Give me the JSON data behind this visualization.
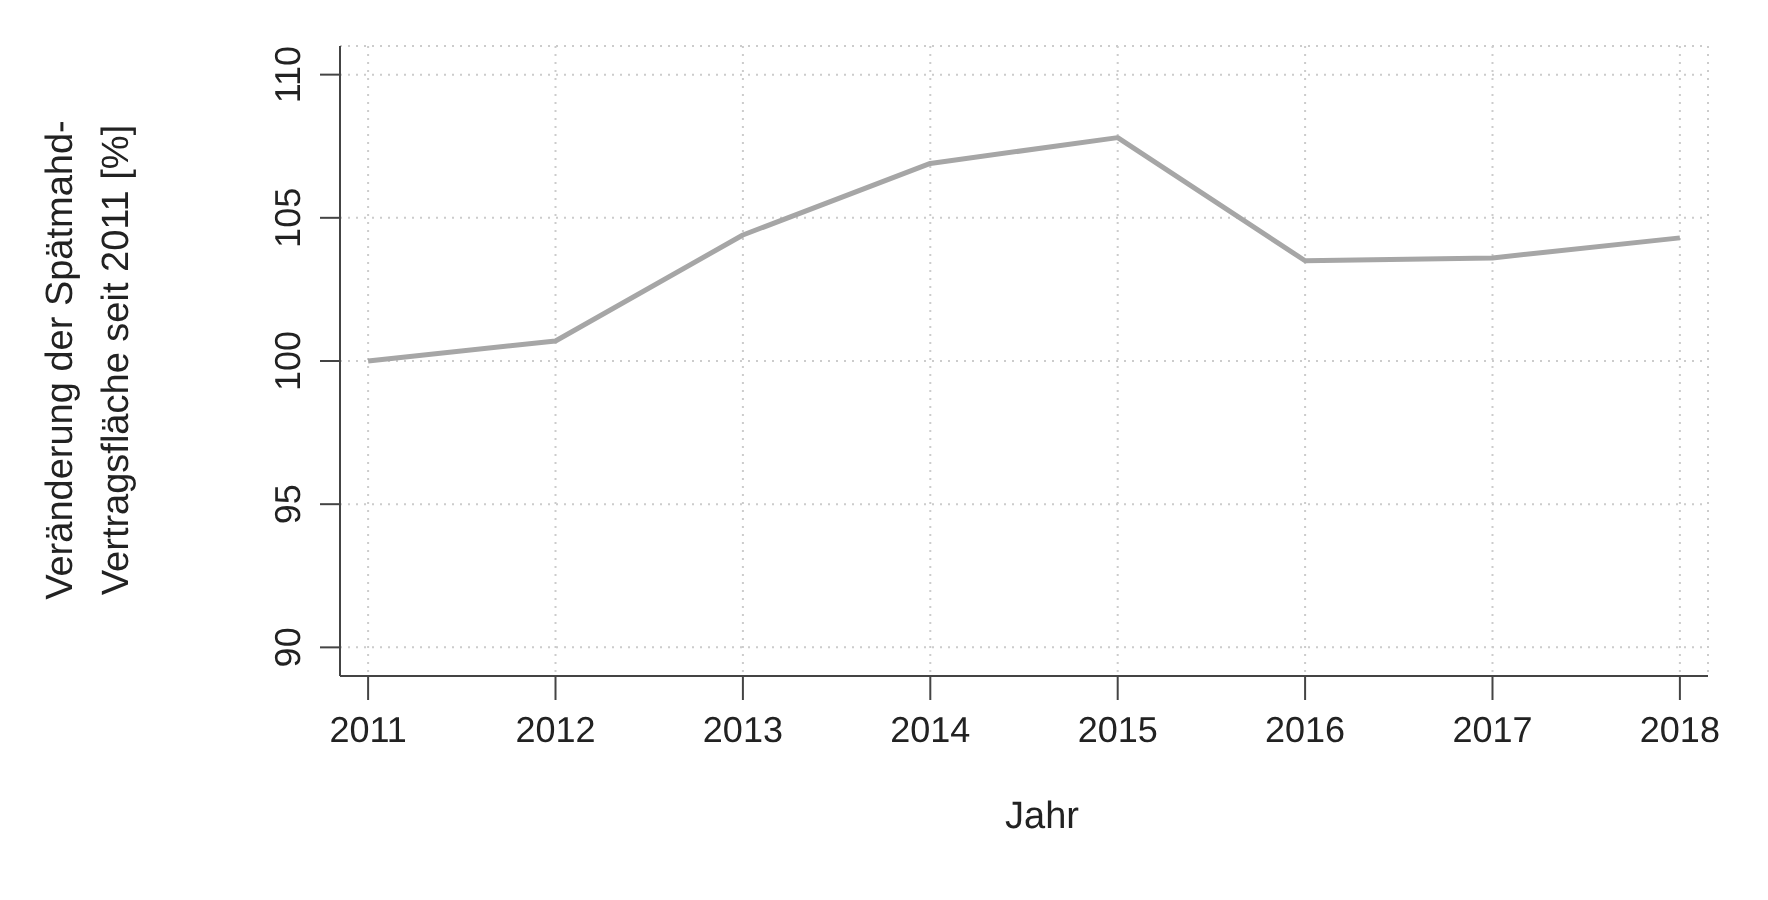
{
  "chart_data": {
    "type": "line",
    "xlabel": "Jahr",
    "ylabel": "Veränderung der Spätmahd-\nVertragsfläche seit 2011 [%]",
    "x": [
      2011,
      2012,
      2013,
      2014,
      2015,
      2016,
      2017,
      2018
    ],
    "series": [
      {
        "color": "#a6a6a6",
        "values": [
          100,
          100.7,
          104.4,
          106.9,
          107.8,
          103.5,
          103.6,
          104.3
        ]
      }
    ],
    "xlim": [
      2010.85,
      2018.15
    ],
    "xticks": [
      2011,
      2012,
      2013,
      2014,
      2015,
      2016,
      2017,
      2018
    ],
    "ylim": [
      89,
      111
    ],
    "yticks": [
      90,
      95,
      100,
      105,
      110
    ],
    "grid": true,
    "marker": "none",
    "line_style": "solid"
  }
}
